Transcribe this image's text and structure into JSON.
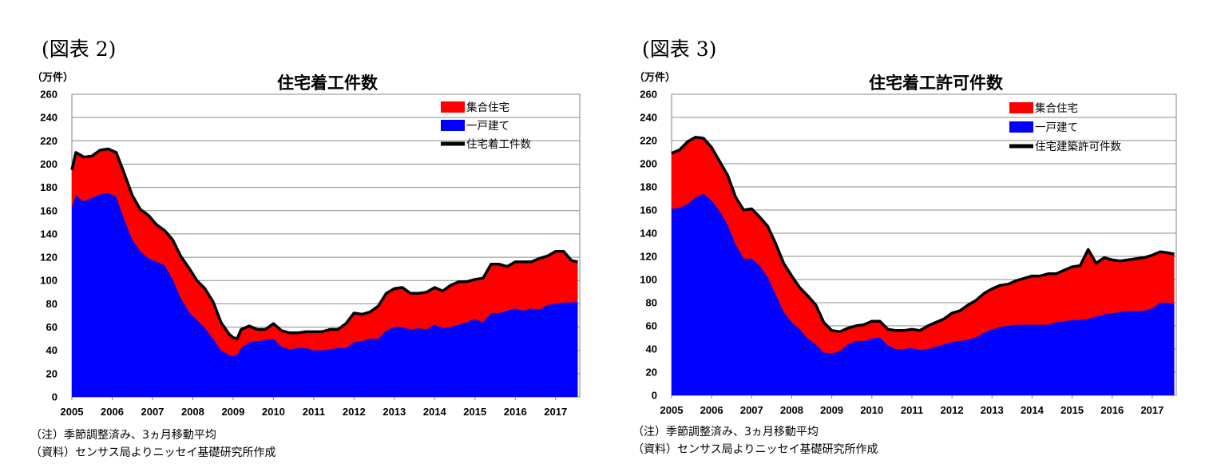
{
  "charts": [
    {
      "fig_label": "(図表 2)",
      "unit": "（万件）",
      "note": "（注）季節調整済み、3ヵ月移動平均",
      "source": "（資料）センサス局よりニッセイ基礎研究所作成",
      "colors": {
        "multi": "#ff0000",
        "single": "#0000ff",
        "total": "#000000"
      }
    },
    {
      "fig_label": "(図表 3)",
      "unit": "（万件）",
      "note": "（注）季節調整済み、3ヵ月移動平均",
      "source": "（資料）センサス局よりニッセイ基礎研究所作成",
      "colors": {
        "multi": "#ff0000",
        "single": "#0000ff",
        "total": "#000000"
      }
    }
  ],
  "chart_data": [
    {
      "type": "area",
      "title": "住宅着工件数",
      "ylabel": "（万件）",
      "ylim": [
        0,
        260
      ],
      "yticks": [
        0,
        20,
        40,
        60,
        80,
        100,
        120,
        140,
        160,
        180,
        200,
        220,
        240,
        260
      ],
      "xlim": [
        2005.0,
        2017.6
      ],
      "xticks": [
        "2005",
        "2006",
        "2007",
        "2008",
        "2009",
        "2010",
        "2011",
        "2012",
        "2013",
        "2014",
        "2015",
        "2016",
        "2017"
      ],
      "grid": true,
      "legend_position": "top-right",
      "stacked": true,
      "series": [
        {
          "name": "集合住宅",
          "role": "multi",
          "x": [
            2005.0,
            2005.1,
            2005.3,
            2005.5,
            2005.7,
            2005.9,
            2006.1,
            2006.3,
            2006.5,
            2006.7,
            2006.9,
            2007.1,
            2007.3,
            2007.5,
            2007.7,
            2007.9,
            2008.1,
            2008.3,
            2008.5,
            2008.7,
            2008.9,
            2009.0,
            2009.1,
            2009.2,
            2009.4,
            2009.6,
            2009.8,
            2010.0,
            2010.2,
            2010.4,
            2010.6,
            2010.8,
            2011.0,
            2011.2,
            2011.4,
            2011.6,
            2011.8,
            2012.0,
            2012.2,
            2012.4,
            2012.6,
            2012.8,
            2013.0,
            2013.2,
            2013.4,
            2013.6,
            2013.8,
            2014.0,
            2014.2,
            2014.4,
            2014.6,
            2014.8,
            2015.0,
            2015.2,
            2015.4,
            2015.6,
            2015.8,
            2016.0,
            2016.2,
            2016.4,
            2016.6,
            2016.8,
            2017.0,
            2017.2,
            2017.4,
            2017.55
          ],
          "values": [
            32,
            37,
            38,
            36,
            38,
            38,
            38,
            40,
            38,
            36,
            37,
            32,
            30,
            34,
            36,
            38,
            34,
            34,
            32,
            24,
            18,
            16,
            14,
            16,
            14,
            10,
            9,
            13,
            14,
            14,
            13,
            14,
            16,
            16,
            17,
            16,
            21,
            25,
            23,
            23,
            28,
            32,
            33,
            34,
            31,
            30,
            32,
            32,
            32,
            36,
            37,
            35,
            34,
            38,
            42,
            42,
            38,
            40,
            42,
            40,
            44,
            42,
            45,
            44,
            36,
            34
          ]
        },
        {
          "name": "一戸建て",
          "role": "single",
          "x": [
            2005.0,
            2005.1,
            2005.3,
            2005.5,
            2005.7,
            2005.9,
            2006.1,
            2006.3,
            2006.5,
            2006.7,
            2006.9,
            2007.1,
            2007.3,
            2007.5,
            2007.7,
            2007.9,
            2008.1,
            2008.3,
            2008.5,
            2008.7,
            2008.9,
            2009.0,
            2009.1,
            2009.2,
            2009.4,
            2009.6,
            2009.8,
            2010.0,
            2010.2,
            2010.4,
            2010.6,
            2010.8,
            2011.0,
            2011.2,
            2011.4,
            2011.6,
            2011.8,
            2012.0,
            2012.2,
            2012.4,
            2012.6,
            2012.8,
            2013.0,
            2013.2,
            2013.4,
            2013.6,
            2013.8,
            2014.0,
            2014.2,
            2014.4,
            2014.6,
            2014.8,
            2015.0,
            2015.2,
            2015.4,
            2015.6,
            2015.8,
            2016.0,
            2016.2,
            2016.4,
            2016.6,
            2016.8,
            2017.0,
            2017.2,
            2017.4,
            2017.55
          ],
          "values": [
            163,
            173,
            168,
            171,
            174,
            175,
            172,
            152,
            135,
            125,
            119,
            116,
            113,
            101,
            85,
            73,
            66,
            59,
            50,
            40,
            36,
            35,
            36,
            42,
            47,
            48,
            49,
            50,
            43,
            41,
            42,
            42,
            40,
            40,
            41,
            42,
            42,
            47,
            48,
            50,
            50,
            57,
            60,
            60,
            58,
            59,
            58,
            62,
            59,
            60,
            62,
            64,
            67,
            64,
            72,
            72,
            74,
            76,
            74,
            76,
            75,
            79,
            80,
            81,
            81,
            82
          ]
        },
        {
          "name": "住宅着工件数",
          "role": "total",
          "x": [
            2005.0,
            2005.1,
            2005.3,
            2005.5,
            2005.7,
            2005.9,
            2006.1,
            2006.3,
            2006.5,
            2006.7,
            2006.9,
            2007.1,
            2007.3,
            2007.5,
            2007.7,
            2007.9,
            2008.1,
            2008.3,
            2008.5,
            2008.7,
            2008.9,
            2009.0,
            2009.1,
            2009.2,
            2009.4,
            2009.6,
            2009.8,
            2010.0,
            2010.2,
            2010.4,
            2010.6,
            2010.8,
            2011.0,
            2011.2,
            2011.4,
            2011.6,
            2011.8,
            2012.0,
            2012.2,
            2012.4,
            2012.6,
            2012.8,
            2013.0,
            2013.2,
            2013.4,
            2013.6,
            2013.8,
            2014.0,
            2014.2,
            2014.4,
            2014.6,
            2014.8,
            2015.0,
            2015.2,
            2015.4,
            2015.6,
            2015.8,
            2016.0,
            2016.2,
            2016.4,
            2016.6,
            2016.8,
            2017.0,
            2017.2,
            2017.4,
            2017.55
          ],
          "values": [
            195,
            210,
            206,
            207,
            212,
            213,
            210,
            192,
            173,
            161,
            156,
            148,
            143,
            135,
            121,
            111,
            100,
            93,
            82,
            64,
            54,
            51,
            50,
            58,
            61,
            58,
            58,
            63,
            57,
            55,
            55,
            56,
            56,
            56,
            58,
            58,
            63,
            72,
            71,
            73,
            78,
            89,
            93,
            94,
            89,
            89,
            90,
            94,
            91,
            96,
            99,
            99,
            101,
            102,
            114,
            114,
            112,
            116,
            116,
            116,
            119,
            121,
            125,
            125,
            117,
            116
          ]
        }
      ]
    },
    {
      "type": "area",
      "title": "住宅着工許可件数",
      "ylabel": "（万件）",
      "ylim": [
        0,
        260
      ],
      "yticks": [
        0,
        20,
        40,
        60,
        80,
        100,
        120,
        140,
        160,
        180,
        200,
        220,
        240,
        260
      ],
      "xlim": [
        2005.0,
        2017.6
      ],
      "xticks": [
        "2005",
        "2006",
        "2007",
        "2008",
        "2009",
        "2010",
        "2011",
        "2012",
        "2013",
        "2014",
        "2015",
        "2016",
        "2017"
      ],
      "grid": true,
      "legend_position": "top-right",
      "stacked": true,
      "series": [
        {
          "name": "集合住宅",
          "role": "multi",
          "x": [
            2005.0,
            2005.2,
            2005.4,
            2005.6,
            2005.8,
            2006.0,
            2006.2,
            2006.4,
            2006.6,
            2006.8,
            2007.0,
            2007.2,
            2007.4,
            2007.6,
            2007.8,
            2008.0,
            2008.2,
            2008.4,
            2008.6,
            2008.8,
            2009.0,
            2009.2,
            2009.4,
            2009.6,
            2009.8,
            2010.0,
            2010.2,
            2010.4,
            2010.6,
            2010.8,
            2011.0,
            2011.2,
            2011.4,
            2011.6,
            2011.8,
            2012.0,
            2012.2,
            2012.4,
            2012.6,
            2012.8,
            2013.0,
            2013.2,
            2013.4,
            2013.6,
            2013.8,
            2014.0,
            2014.2,
            2014.4,
            2014.6,
            2014.8,
            2015.0,
            2015.2,
            2015.4,
            2015.6,
            2015.8,
            2016.0,
            2016.2,
            2016.4,
            2016.6,
            2016.8,
            2017.0,
            2017.2,
            2017.4,
            2017.55
          ],
          "values": [
            48,
            50,
            54,
            52,
            48,
            46,
            43,
            43,
            41,
            42,
            43,
            42,
            44,
            44,
            42,
            40,
            36,
            37,
            34,
            26,
            20,
            17,
            14,
            13,
            14,
            15,
            14,
            14,
            16,
            16,
            16,
            17,
            20,
            21,
            22,
            25,
            26,
            30,
            32,
            34,
            35,
            36,
            36,
            38,
            40,
            42,
            42,
            44,
            42,
            44,
            46,
            47,
            60,
            46,
            49,
            46,
            44,
            44,
            45,
            46,
            46,
            44,
            43,
            43
          ]
        },
        {
          "name": "一戸建て",
          "role": "single",
          "x": [
            2005.0,
            2005.2,
            2005.4,
            2005.6,
            2005.8,
            2006.0,
            2006.2,
            2006.4,
            2006.6,
            2006.8,
            2007.0,
            2007.2,
            2007.4,
            2007.6,
            2007.8,
            2008.0,
            2008.2,
            2008.4,
            2008.6,
            2008.8,
            2009.0,
            2009.2,
            2009.4,
            2009.6,
            2009.8,
            2010.0,
            2010.2,
            2010.4,
            2010.6,
            2010.8,
            2011.0,
            2011.2,
            2011.4,
            2011.6,
            2011.8,
            2012.0,
            2012.2,
            2012.4,
            2012.6,
            2012.8,
            2013.0,
            2013.2,
            2013.4,
            2013.6,
            2013.8,
            2014.0,
            2014.2,
            2014.4,
            2014.6,
            2014.8,
            2015.0,
            2015.2,
            2015.4,
            2015.6,
            2015.8,
            2016.0,
            2016.2,
            2016.4,
            2016.6,
            2016.8,
            2017.0,
            2017.2,
            2017.4,
            2017.55
          ],
          "values": [
            161,
            162,
            165,
            171,
            174,
            168,
            159,
            147,
            130,
            118,
            118,
            112,
            102,
            87,
            72,
            63,
            57,
            49,
            44,
            37,
            36,
            38,
            44,
            47,
            47,
            49,
            50,
            43,
            40,
            40,
            41,
            39,
            40,
            42,
            44,
            46,
            47,
            48,
            50,
            54,
            57,
            59,
            60,
            61,
            61,
            61,
            61,
            61,
            63,
            64,
            65,
            65,
            66,
            68,
            70,
            71,
            72,
            73,
            73,
            73,
            75,
            80,
            80,
            79
          ]
        },
        {
          "name": "住宅建築許可件数",
          "role": "total",
          "x": [
            2005.0,
            2005.2,
            2005.4,
            2005.6,
            2005.8,
            2006.0,
            2006.2,
            2006.4,
            2006.6,
            2006.8,
            2007.0,
            2007.2,
            2007.4,
            2007.6,
            2007.8,
            2008.0,
            2008.2,
            2008.4,
            2008.6,
            2008.8,
            2009.0,
            2009.2,
            2009.4,
            2009.6,
            2009.8,
            2010.0,
            2010.2,
            2010.4,
            2010.6,
            2010.8,
            2011.0,
            2011.2,
            2011.4,
            2011.6,
            2011.8,
            2012.0,
            2012.2,
            2012.4,
            2012.6,
            2012.8,
            2013.0,
            2013.2,
            2013.4,
            2013.6,
            2013.8,
            2014.0,
            2014.2,
            2014.4,
            2014.6,
            2014.8,
            2015.0,
            2015.2,
            2015.4,
            2015.6,
            2015.8,
            2016.0,
            2016.2,
            2016.4,
            2016.6,
            2016.8,
            2017.0,
            2017.2,
            2017.4,
            2017.55
          ],
          "values": [
            209,
            212,
            219,
            223,
            222,
            214,
            202,
            190,
            171,
            160,
            161,
            154,
            146,
            131,
            114,
            103,
            93,
            86,
            78,
            63,
            56,
            55,
            58,
            60,
            61,
            64,
            64,
            57,
            56,
            56,
            57,
            56,
            60,
            63,
            66,
            71,
            73,
            78,
            82,
            88,
            92,
            95,
            96,
            99,
            101,
            103,
            103,
            105,
            105,
            108,
            111,
            112,
            126,
            114,
            119,
            117,
            116,
            117,
            118,
            119,
            121,
            124,
            123,
            122
          ]
        }
      ]
    }
  ]
}
